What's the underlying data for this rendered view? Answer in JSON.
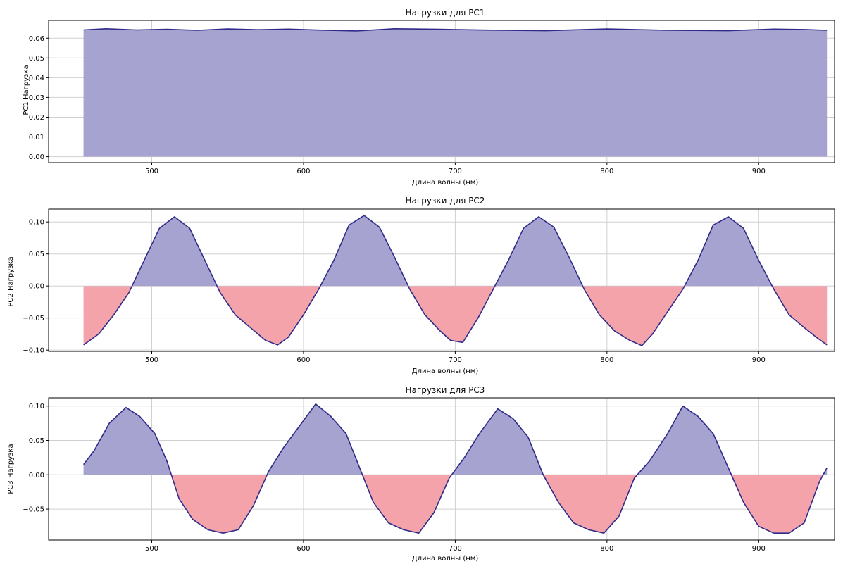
{
  "colors": {
    "line": "#2e2b8a",
    "positive_fill": "#a7a3d0",
    "negative_fill": "#f4a3aa",
    "grid": "#d0d0d0"
  },
  "chart_data": [
    {
      "type": "area",
      "title": "Нагрузки для PC1",
      "xlabel": "Длина волны (нм)",
      "ylabel": "PC1 Нагрузка",
      "xlim": [
        432,
        950
      ],
      "ylim": [
        -0.003,
        0.069
      ],
      "xticks": [
        500,
        600,
        700,
        800,
        900
      ],
      "xtick_labels": [
        "500",
        "600",
        "700",
        "800",
        "900"
      ],
      "yticks": [
        0.0,
        0.01,
        0.02,
        0.03,
        0.04,
        0.05,
        0.06
      ],
      "ytick_labels": [
        "0.00",
        "0.01",
        "0.02",
        "0.03",
        "0.04",
        "0.05",
        "0.06"
      ],
      "grid": true,
      "series": [
        {
          "x": [
            455,
            470,
            490,
            510,
            530,
            550,
            570,
            590,
            610,
            635,
            660,
            690,
            720,
            760,
            800,
            840,
            880,
            910,
            930,
            945
          ],
          "y": [
            0.0642,
            0.0648,
            0.0642,
            0.0645,
            0.064,
            0.0647,
            0.0643,
            0.0646,
            0.0641,
            0.0637,
            0.0648,
            0.0645,
            0.0641,
            0.0638,
            0.0647,
            0.064,
            0.0638,
            0.0646,
            0.0644,
            0.064
          ]
        }
      ]
    },
    {
      "type": "area",
      "title": "Нагрузки для PC2",
      "xlabel": "Длина волны (нм)",
      "ylabel": "PC2 Нагрузка",
      "xlim": [
        432,
        950
      ],
      "ylim": [
        -0.102,
        0.12
      ],
      "xticks": [
        500,
        600,
        700,
        800,
        900
      ],
      "xtick_labels": [
        "500",
        "600",
        "700",
        "800",
        "900"
      ],
      "yticks": [
        -0.1,
        -0.05,
        0.0,
        0.05,
        0.1
      ],
      "ytick_labels": [
        "−0.10",
        "−0.05",
        "0.00",
        "0.05",
        "0.10"
      ],
      "grid": true,
      "series": [
        {
          "x": [
            455,
            465,
            475,
            485,
            495,
            505,
            515,
            525,
            535,
            545,
            555,
            565,
            575,
            583,
            590,
            600,
            610,
            620,
            630,
            640,
            650,
            660,
            670,
            680,
            690,
            697,
            705,
            715,
            725,
            735,
            745,
            755,
            765,
            775,
            785,
            795,
            805,
            815,
            823,
            830,
            840,
            850,
            860,
            870,
            880,
            890,
            900,
            910,
            920,
            930,
            938,
            945
          ],
          "y": [
            -0.092,
            -0.075,
            -0.045,
            -0.01,
            0.04,
            0.09,
            0.108,
            0.09,
            0.04,
            -0.01,
            -0.045,
            -0.065,
            -0.085,
            -0.092,
            -0.08,
            -0.045,
            -0.005,
            0.04,
            0.095,
            0.11,
            0.092,
            0.045,
            -0.005,
            -0.045,
            -0.07,
            -0.085,
            -0.088,
            -0.05,
            -0.005,
            0.04,
            0.09,
            0.108,
            0.092,
            0.045,
            -0.005,
            -0.045,
            -0.07,
            -0.085,
            -0.093,
            -0.075,
            -0.04,
            -0.005,
            0.04,
            0.095,
            0.108,
            0.09,
            0.04,
            -0.005,
            -0.045,
            -0.065,
            -0.08,
            -0.092
          ]
        }
      ]
    },
    {
      "type": "area",
      "title": "Нагрузки для PC3",
      "xlabel": "Длина волны (нм)",
      "ylabel": "PC3 Нагрузка",
      "xlim": [
        432,
        950
      ],
      "ylim": [
        -0.095,
        0.112
      ],
      "xticks": [
        500,
        600,
        700,
        800,
        900
      ],
      "xtick_labels": [
        "500",
        "600",
        "700",
        "800",
        "900"
      ],
      "yticks": [
        -0.05,
        0.0,
        0.05,
        0.1
      ],
      "ytick_labels": [
        "−0.05",
        "0.00",
        "0.05",
        "0.10"
      ],
      "grid": true,
      "series": [
        {
          "x": [
            455,
            462,
            472,
            483,
            492,
            502,
            510,
            518,
            527,
            537,
            547,
            557,
            567,
            577,
            587,
            597,
            608,
            618,
            628,
            637,
            646,
            656,
            666,
            676,
            686,
            696,
            706,
            716,
            728,
            738,
            748,
            758,
            768,
            778,
            788,
            798,
            808,
            818,
            828,
            840,
            850,
            860,
            870,
            880,
            890,
            900,
            910,
            920,
            930,
            940,
            945
          ],
          "y": [
            0.015,
            0.035,
            0.075,
            0.098,
            0.085,
            0.06,
            0.02,
            -0.035,
            -0.065,
            -0.08,
            -0.085,
            -0.08,
            -0.045,
            0.005,
            0.04,
            0.07,
            0.103,
            0.085,
            0.06,
            0.01,
            -0.04,
            -0.07,
            -0.08,
            -0.085,
            -0.055,
            -0.005,
            0.025,
            0.06,
            0.096,
            0.082,
            0.055,
            0.0,
            -0.04,
            -0.07,
            -0.08,
            -0.085,
            -0.06,
            -0.005,
            0.02,
            0.06,
            0.1,
            0.085,
            0.06,
            0.01,
            -0.04,
            -0.075,
            -0.085,
            -0.085,
            -0.07,
            -0.01,
            0.01
          ]
        }
      ]
    }
  ]
}
